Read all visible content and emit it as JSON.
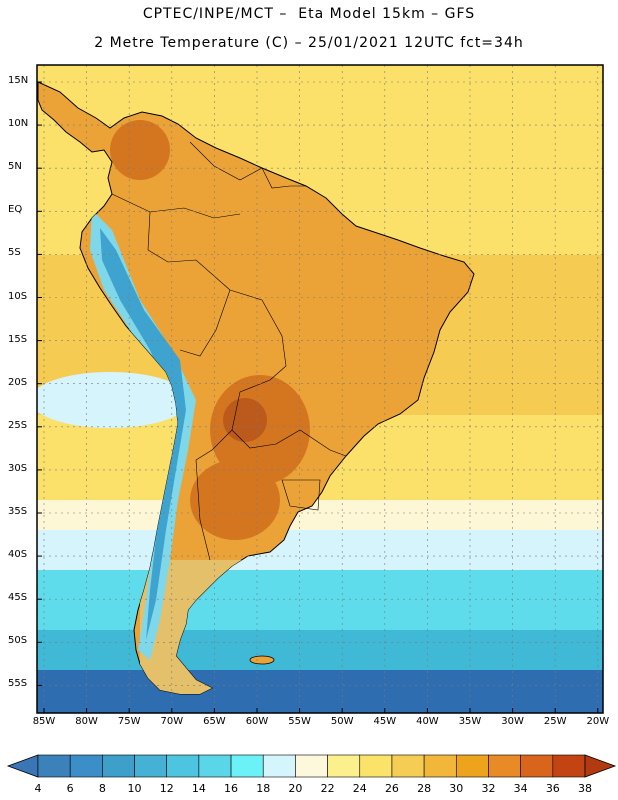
{
  "title_line1": "CPTEC/INPE/MCT –  Eta Model 15km – GFS",
  "title_line2": "2 Metre Temperature (C) – 25/01/2021 12UTC fct=34h",
  "colors": {
    "frame": "#000000",
    "grid": "#7a7a7a",
    "ocean_warm": "#fbe06a",
    "ocean_hot": "#f6cb52",
    "ocean_mild": "#fdf7d6",
    "ocean_cool": "#d6f4fb",
    "ocean_cold": "#5fdcec",
    "ocean_colder": "#3fb9d6",
    "ocean_coldest": "#2e6db0",
    "land_base": "#eba338",
    "land_hot": "#d4761f",
    "land_hotter": "#bb5a1a",
    "andes_cold": "#7fd8ea",
    "andes_colder": "#3fa3cf",
    "patagonia": "#e5c06a",
    "coast": "#000000"
  },
  "map": {
    "latitude_labels": [
      "15N",
      "10N",
      "5N",
      "EQ",
      "5S",
      "10S",
      "15S",
      "20S",
      "25S",
      "30S",
      "35S",
      "40S",
      "45S",
      "50S",
      "55S"
    ],
    "longitude_labels": [
      "85W",
      "80W",
      "75W",
      "70W",
      "65W",
      "60W",
      "55W",
      "50W",
      "45W",
      "40W",
      "35W",
      "30W",
      "25W",
      "20W"
    ]
  },
  "colorbar": {
    "values": [
      "4",
      "6",
      "8",
      "10",
      "12",
      "14",
      "16",
      "18",
      "20",
      "22",
      "24",
      "26",
      "28",
      "30",
      "32",
      "34",
      "36",
      "38"
    ],
    "colors": [
      "#3b82bb",
      "#3b8ec7",
      "#3e9fcb",
      "#45b2d5",
      "#4ec5e0",
      "#5bd6e8",
      "#6bf2f7",
      "#d3f5fb",
      "#fdf7dc",
      "#fbf08c",
      "#fbe36a",
      "#f6cd54",
      "#f2b63a",
      "#eea31d",
      "#e88a25",
      "#d9641b",
      "#c34313"
    ],
    "low_arrow_color": "#3a76b5",
    "high_arrow_color": "#b13a10"
  }
}
